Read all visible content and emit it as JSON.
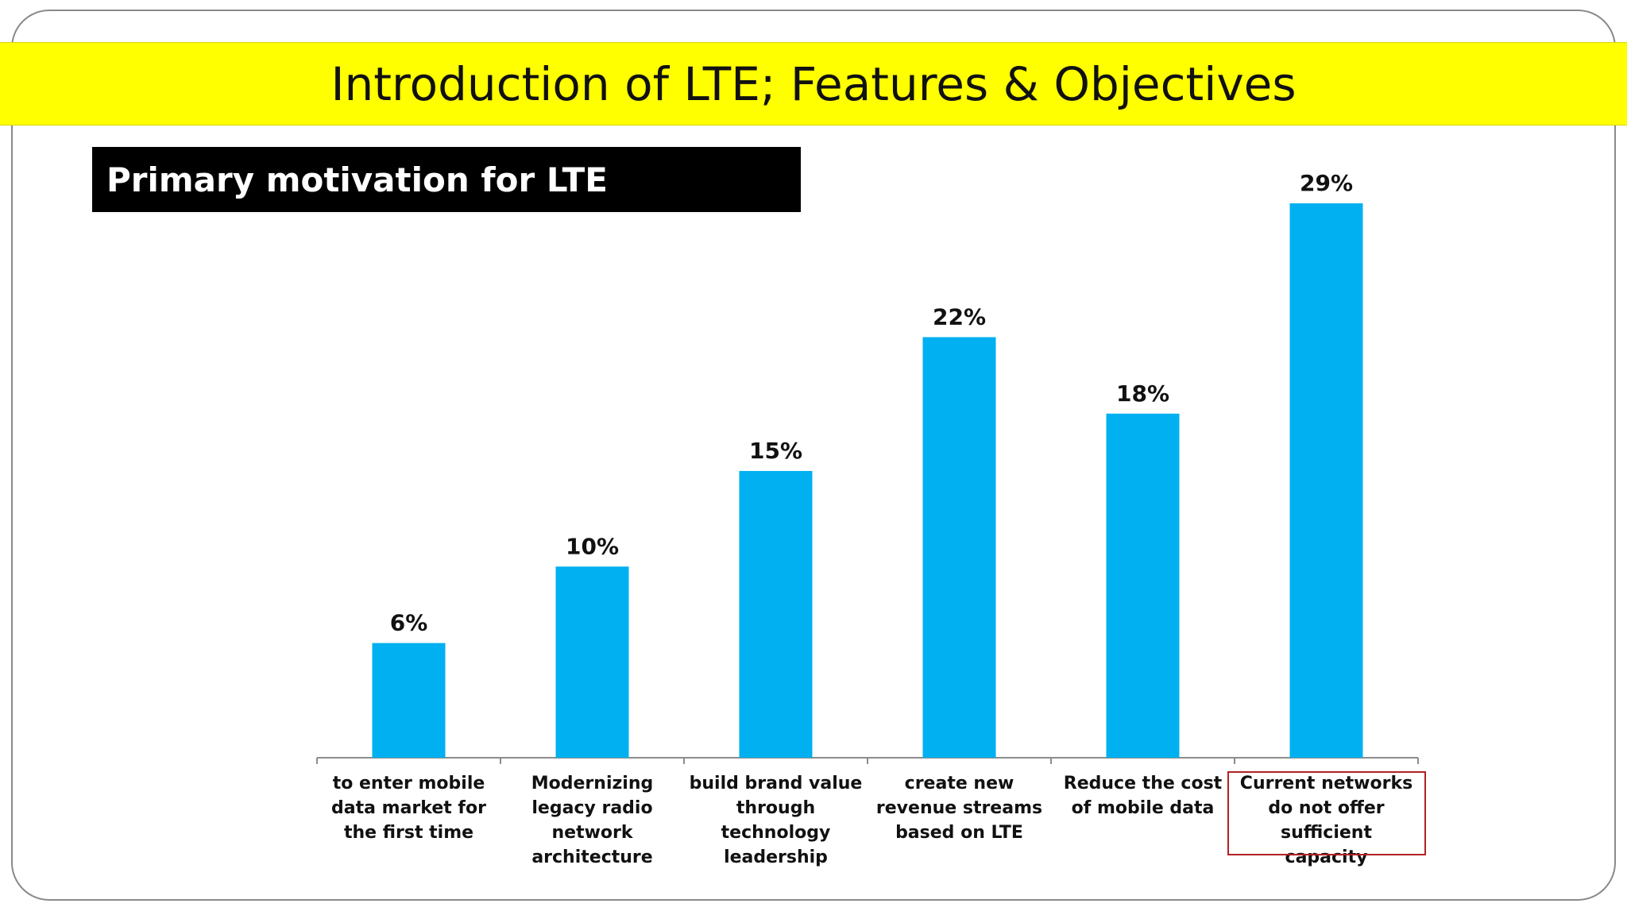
{
  "slide": {
    "title": "Introduction of LTE; Features & Objectives",
    "subtitle": "Primary motivation for LTE"
  },
  "colors": {
    "title_bar": "#ffff00",
    "subtitle_bg": "#000000",
    "bar": "#00b0f0",
    "highlight": "#b22222"
  },
  "chart_data": {
    "type": "bar",
    "categories": [
      "to enter mobile data market for the first time",
      "Modernizing legacy radio network architecture",
      "build brand value through technology leadership",
      "create new revenue streams based on LTE",
      "Reduce the cost of mobile data",
      "Current networks do not offer sufficient capacity"
    ],
    "values": [
      6,
      10,
      15,
      22,
      18,
      29
    ],
    "data_labels": [
      "6%",
      "10%",
      "15%",
      "22%",
      "18%",
      "29%"
    ],
    "unit": "%",
    "ylim": [
      0,
      30
    ],
    "grid": false,
    "highlighted_category_index": 5
  }
}
